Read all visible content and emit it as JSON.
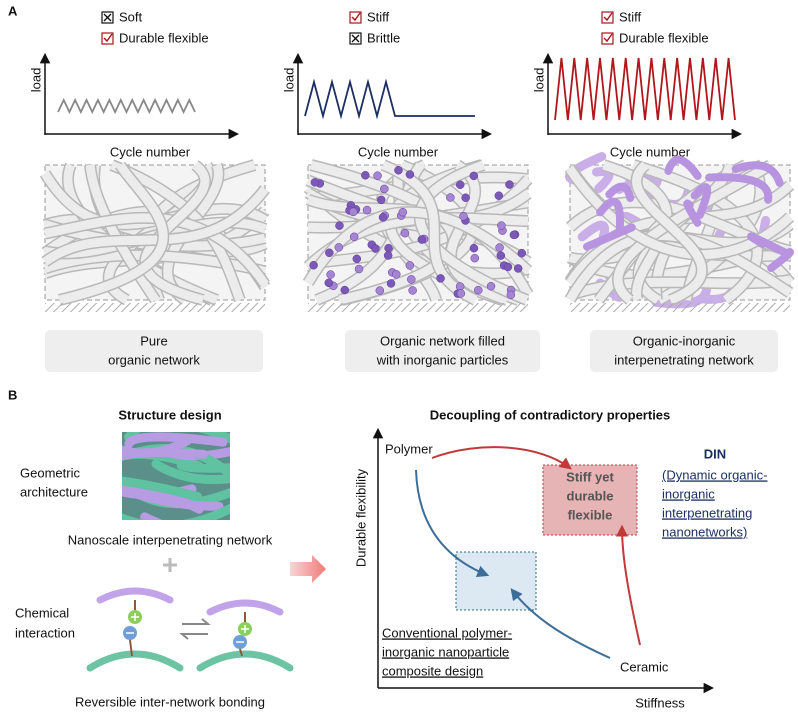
{
  "panel_a": {
    "label": "A",
    "columns": [
      {
        "checks": [
          {
            "state": "crossed",
            "text": "Soft",
            "color": "#111111"
          },
          {
            "state": "checked",
            "text": "Durable flexible",
            "color": "#a3161a"
          }
        ],
        "y_axis_label": "load",
        "x_axis_label": "Cycle number",
        "caption": [
          "Pure",
          "organic network"
        ],
        "caption_color": "#111111"
      },
      {
        "checks": [
          {
            "state": "checked",
            "text": "Stiff",
            "color": "#a3161a"
          },
          {
            "state": "crossed",
            "text": "Brittle",
            "color": "#111111"
          }
        ],
        "y_axis_label": "load",
        "x_axis_label": "Cycle number",
        "caption": [
          "Organic network filled",
          "with inorganic particles"
        ],
        "caption_color": "#111111"
      },
      {
        "checks": [
          {
            "state": "checked",
            "text": "Stiff",
            "color": "#a3161a"
          },
          {
            "state": "checked",
            "text": "Durable flexible",
            "color": "#a3161a"
          }
        ],
        "y_axis_label": "load",
        "x_axis_label": "Cycle number",
        "caption": [
          "Organic-inorganic",
          "interpenetrating network"
        ],
        "caption_color": "#a3161a"
      }
    ]
  },
  "panel_b": {
    "label": "B",
    "structure": {
      "title": "Structure design",
      "geometric": [
        "Geometric",
        "architecture"
      ],
      "network": "Nanoscale interpenetrating network",
      "chemical": [
        "Chemical",
        "interaction"
      ],
      "bonding": "Reversible inter-network bonding"
    },
    "properties": {
      "title": "Decoupling of contradictory properties",
      "y_axis_label": "Durable flexibility",
      "x_axis_label": "Stiffness",
      "polymer": "Polymer",
      "ceramic": "Ceramic",
      "target": [
        "Stiff yet",
        "durable",
        "flexible"
      ],
      "din_title": "DIN",
      "din_text": [
        "(Dynamic organic-",
        "inorganic",
        "interpenetrating",
        "nanonetworks)"
      ],
      "conventional": [
        "Conventional polymer-",
        "inorganic nanoparticle",
        "composite design"
      ]
    }
  }
}
